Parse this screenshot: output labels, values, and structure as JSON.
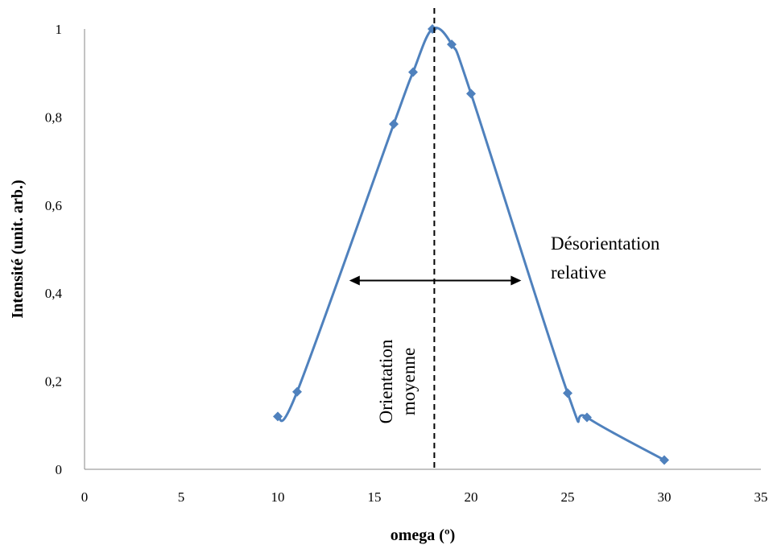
{
  "chart_data": {
    "type": "scatter",
    "line": "smooth",
    "marker": "diamond",
    "xlabel": "omega (º)",
    "ylabel": "Intensité (unit. arb.)",
    "xlim": [
      0,
      35
    ],
    "ylim": [
      0,
      1
    ],
    "xticks": [
      "0",
      "5",
      "10",
      "15",
      "20",
      "25",
      "30",
      "35"
    ],
    "yticks": [
      "0",
      "0,2",
      "0,4",
      "0,6",
      "0,8",
      "1"
    ],
    "grid": false,
    "legend": "none",
    "color": "#4f81bd",
    "series": [
      {
        "x": [
          10,
          11,
          16,
          17,
          18,
          19,
          20,
          25,
          26,
          30
        ],
        "y": [
          0.12,
          0.176,
          0.784,
          0.902,
          1.0,
          0.965,
          0.853,
          0.173,
          0.118,
          0.021
        ]
      }
    ],
    "annotations": {
      "mean_orientation_x": 18.1,
      "mean_orientation_label": [
        "Orientation",
        "moyenne"
      ],
      "misorientation_range_x": [
        13.7,
        22.6
      ],
      "misorientation_y": 0.5,
      "misorientation_label": [
        "Désorientation",
        "relative"
      ]
    }
  }
}
